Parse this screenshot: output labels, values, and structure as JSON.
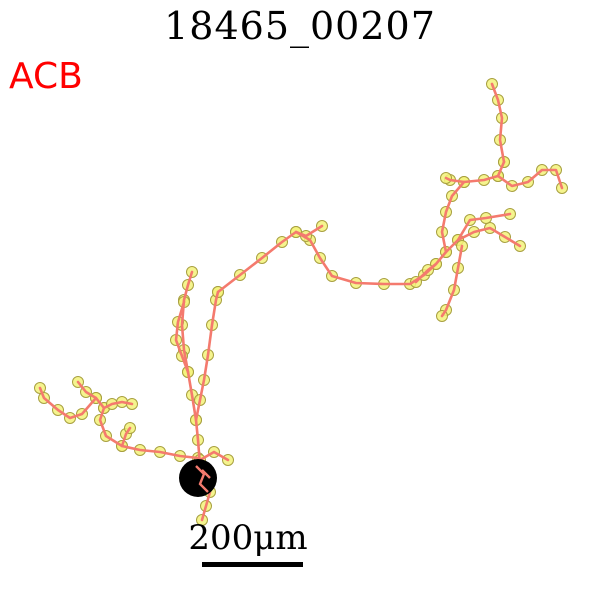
{
  "title": "18465_00207",
  "region_label": "ACB",
  "region_color": "#ff0000",
  "scale_bar": {
    "label": "200μm",
    "length_um": 200
  },
  "colors": {
    "neurite": "#f47a6e",
    "node_fill": "#f3f27a",
    "node_stroke": "#a8a040",
    "soma": "#000000"
  }
}
